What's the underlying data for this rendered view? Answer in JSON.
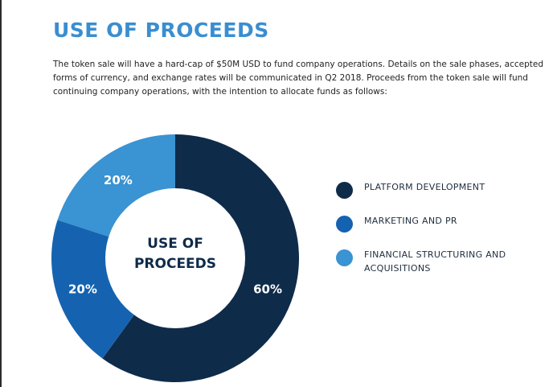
{
  "page": {
    "title": "USE OF PROCEEDS",
    "intro": "The token sale will have a hard-cap of $50M USD to fund company operations.  Details on the sale phases, accepted forms of currency, and exchange rates will be communicated in Q2 2018.  Proceeds from the token sale will fund continuing company operations, with the intention to allocate funds as follows:"
  },
  "chart_data": {
    "type": "pie",
    "title": "",
    "center_label_line1": "USE OF",
    "center_label_line2": "PROCEEDS",
    "categories": [
      "PLATFORM DEVELOPMENT",
      "MARKETING AND PR",
      "FINANCIAL STRUCTURING AND ACQUISITIONS"
    ],
    "values": [
      60,
      20,
      20
    ],
    "value_labels": [
      "60%",
      "20%",
      "20%"
    ],
    "colors": [
      "#0f2b4a",
      "#1563b0",
      "#3a93d2"
    ],
    "legend_placement": "right",
    "donut": true
  }
}
